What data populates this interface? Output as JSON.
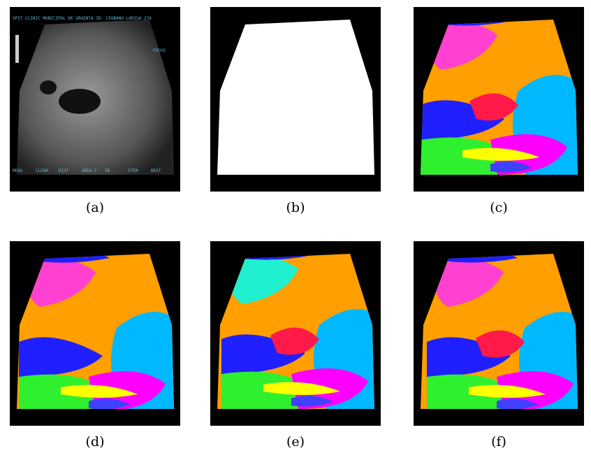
{
  "figure": {
    "panels": [
      {
        "caption": "(a)"
      },
      {
        "caption": "(b)"
      },
      {
        "caption": "(c)"
      },
      {
        "caption": "(d)"
      },
      {
        "caption": "(e)"
      },
      {
        "caption": "(f)"
      }
    ],
    "ultrasound_overlay": {
      "header": "SPIT CLINIC MUNICIPAL DE URGENTA ID: CEOBANU LARISA 27A",
      "focus": "FOCUS",
      "menu": [
        "MEAS",
        "CLEAR",
        "DIST",
        "AREA-T",
        "GB",
        "STEM",
        "NEXT"
      ]
    }
  }
}
